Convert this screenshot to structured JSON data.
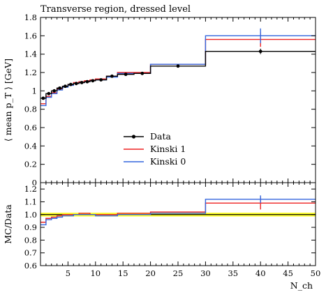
{
  "chart_data": [
    {
      "type": "line",
      "title": "Transverse region, dressed level",
      "ylabel": "⟨ mean p_T ⟩ [GeV]",
      "xlim": [
        0,
        50
      ],
      "ylim": [
        0,
        1.8
      ],
      "yticks": [
        "0",
        "0.2",
        "0.4",
        "0.6",
        "0.8",
        "1",
        "1.2",
        "1.4",
        "1.6",
        "1.8"
      ],
      "legend_placement": "center",
      "bin_edges": [
        0,
        1,
        2,
        3,
        4,
        5,
        6,
        7,
        8,
        9,
        10,
        12,
        14,
        17,
        20,
        30,
        50
      ],
      "series": [
        {
          "name": "Data",
          "style": "points",
          "color": "#000000",
          "x": [
            0.5,
            1.5,
            2.5,
            3.5,
            4.5,
            5.5,
            6.5,
            7.5,
            8.5,
            9.5,
            11,
            13,
            15.5,
            18.5,
            25,
            40
          ],
          "values": [
            0.92,
            0.97,
            1.0,
            1.03,
            1.05,
            1.07,
            1.08,
            1.09,
            1.1,
            1.11,
            1.12,
            1.16,
            1.18,
            1.19,
            1.27,
            1.43
          ],
          "yerr": [
            0.01,
            0.01,
            0.01,
            0.01,
            0.01,
            0.01,
            0.01,
            0.01,
            0.01,
            0.01,
            0.01,
            0.01,
            0.01,
            0.01,
            0.01,
            0.03
          ]
        },
        {
          "name": "Kinski 1",
          "style": "step",
          "color": "#ee2222",
          "values": [
            0.86,
            0.94,
            0.98,
            1.02,
            1.05,
            1.07,
            1.09,
            1.1,
            1.11,
            1.12,
            1.13,
            1.16,
            1.2,
            1.2,
            1.29,
            1.56
          ],
          "yerr_last": 0.08
        },
        {
          "name": "Kinski 0",
          "style": "step",
          "color": "#3366dd",
          "values": [
            0.84,
            0.93,
            0.97,
            1.01,
            1.04,
            1.06,
            1.08,
            1.09,
            1.1,
            1.11,
            1.12,
            1.15,
            1.19,
            1.19,
            1.29,
            1.6
          ],
          "yerr_last": 0.08
        }
      ]
    },
    {
      "type": "line",
      "xlabel": "N_ch",
      "ylabel": "MC/Data",
      "xlim": [
        0,
        50
      ],
      "ylim": [
        0.6,
        1.25
      ],
      "xticks": [
        "5",
        "10",
        "15",
        "20",
        "25",
        "30",
        "35",
        "40",
        "45",
        "50"
      ],
      "yticks": [
        "0.6",
        "0.7",
        "0.8",
        "0.9",
        "1.0",
        "1.1",
        "1.2"
      ],
      "band": {
        "color": "#ffff33",
        "lower": 0.985,
        "upper": 1.015
      },
      "series": [
        {
          "name": "Kinski 1",
          "color": "#ee2222",
          "values": [
            0.94,
            0.97,
            0.98,
            0.99,
            1.0,
            1.0,
            1.0,
            1.01,
            1.01,
            1.0,
            1.0,
            1.0,
            1.01,
            1.01,
            1.02,
            1.09
          ],
          "yerr_last": 0.05
        },
        {
          "name": "Kinski 0",
          "color": "#3366dd",
          "values": [
            0.92,
            0.96,
            0.97,
            0.98,
            0.99,
            0.99,
            1.0,
            1.0,
            1.0,
            1.0,
            0.99,
            0.99,
            1.0,
            1.0,
            1.01,
            1.12
          ],
          "yerr_last": 0.03
        }
      ]
    }
  ]
}
